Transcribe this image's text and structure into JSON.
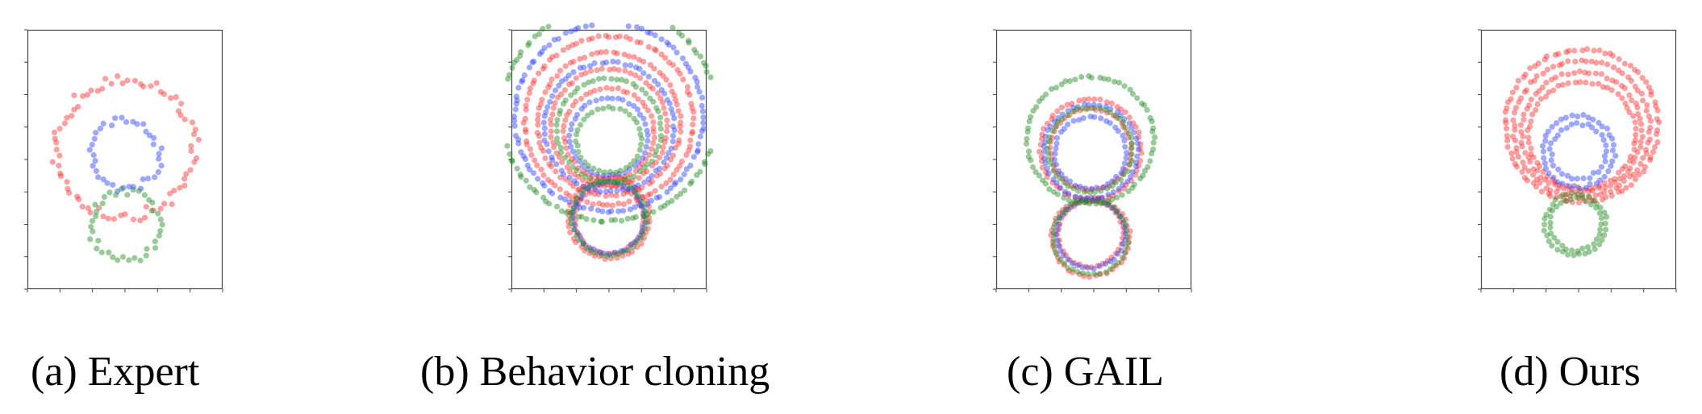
{
  "captions": {
    "a": "(a) Expert",
    "b": "(b) Behavior cloning",
    "c": "(c) GAIL",
    "d": "(d) Ours"
  },
  "colors": {
    "red": "#ff2a2a",
    "blue": "#2a3dff",
    "green": "#1f8a1f",
    "axis": "#444444"
  },
  "chart_data": [
    {
      "type": "scatter",
      "title": "(a) Expert",
      "xlim": [
        0,
        6
      ],
      "ylim": [
        0,
        8
      ],
      "grid": false,
      "series": [
        {
          "color": "red",
          "circles": [
            {
              "cx": 3.0,
              "cy": 4.35,
              "r": 2.1
            }
          ],
          "jitter": 0.18
        },
        {
          "color": "blue",
          "circles": [
            {
              "cx": 3.0,
              "cy": 4.15,
              "r": 1.05
            }
          ],
          "jitter": 0.12
        },
        {
          "color": "green",
          "circles": [
            {
              "cx": 3.0,
              "cy": 1.95,
              "r": 1.05
            }
          ],
          "jitter": 0.12
        }
      ]
    },
    {
      "type": "scatter",
      "title": "(b) Behavior cloning",
      "xlim": [
        0,
        6
      ],
      "ylim": [
        0,
        8
      ],
      "grid": false,
      "series": [
        {
          "color": "red",
          "circles": [
            {
              "cx": 3.0,
              "cy": 5.2,
              "r": 2.6
            },
            {
              "cx": 3.0,
              "cy": 5.1,
              "r": 2.2
            },
            {
              "cx": 3.0,
              "cy": 5.0,
              "r": 1.8
            },
            {
              "cx": 3.0,
              "cy": 4.8,
              "r": 1.4
            },
            {
              "cx": 3.0,
              "cy": 2.2,
              "r": 1.25
            },
            {
              "cx": 3.0,
              "cy": 2.15,
              "r": 1.05
            }
          ],
          "jitter": 0.03
        },
        {
          "color": "blue",
          "circles": [
            {
              "cx": 3.0,
              "cy": 5.3,
              "r": 2.9
            },
            {
              "cx": 3.0,
              "cy": 5.0,
              "r": 2.0
            },
            {
              "cx": 3.0,
              "cy": 4.7,
              "r": 1.2
            },
            {
              "cx": 3.0,
              "cy": 2.2,
              "r": 1.1
            }
          ],
          "jitter": 0.03
        },
        {
          "color": "green",
          "circles": [
            {
              "cx": 3.0,
              "cy": 5.4,
              "r": 3.3
            },
            {
              "cx": 3.0,
              "cy": 4.9,
              "r": 1.6
            },
            {
              "cx": 3.0,
              "cy": 4.6,
              "r": 1.0
            },
            {
              "cx": 3.0,
              "cy": 2.2,
              "r": 1.15
            }
          ],
          "jitter": 0.03
        }
      ]
    },
    {
      "type": "scatter",
      "title": "(c) GAIL",
      "xlim": [
        0,
        6
      ],
      "ylim": [
        0,
        8
      ],
      "grid": false,
      "series": [
        {
          "color": "red",
          "circles": [
            {
              "cx": 2.9,
              "cy": 4.3,
              "r": 1.55
            },
            {
              "cx": 2.9,
              "cy": 4.3,
              "r": 1.25
            },
            {
              "cx": 2.9,
              "cy": 1.6,
              "r": 1.2
            },
            {
              "cx": 2.9,
              "cy": 1.7,
              "r": 1.0
            }
          ],
          "jitter": 0.03
        },
        {
          "color": "blue",
          "circles": [
            {
              "cx": 2.9,
              "cy": 4.25,
              "r": 1.45
            },
            {
              "cx": 2.9,
              "cy": 4.2,
              "r": 1.1
            },
            {
              "cx": 2.9,
              "cy": 1.7,
              "r": 1.05
            }
          ],
          "jitter": 0.03
        },
        {
          "color": "green",
          "circles": [
            {
              "cx": 2.9,
              "cy": 4.6,
              "r": 1.95
            },
            {
              "cx": 2.9,
              "cy": 4.3,
              "r": 1.3
            },
            {
              "cx": 2.9,
              "cy": 1.6,
              "r": 1.15
            }
          ],
          "jitter": 0.03
        }
      ]
    },
    {
      "type": "scatter",
      "title": "(d) Ours",
      "xlim": [
        0,
        6
      ],
      "ylim": [
        0,
        8
      ],
      "grid": false,
      "series": [
        {
          "color": "red",
          "circles": [
            {
              "cx": 3.1,
              "cy": 5.05,
              "r": 2.35
            },
            {
              "cx": 3.1,
              "cy": 4.95,
              "r": 2.1
            },
            {
              "cx": 3.1,
              "cy": 4.85,
              "r": 1.85
            },
            {
              "cx": 3.1,
              "cy": 4.75,
              "r": 1.65
            }
          ],
          "jitter": 0.04
        },
        {
          "color": "blue",
          "circles": [
            {
              "cx": 3.0,
              "cy": 4.25,
              "r": 1.1
            },
            {
              "cx": 3.0,
              "cy": 4.25,
              "r": 0.85
            }
          ],
          "jitter": 0.05
        },
        {
          "color": "green",
          "circles": [
            {
              "cx": 2.9,
              "cy": 2.0,
              "r": 0.95
            },
            {
              "cx": 2.9,
              "cy": 2.0,
              "r": 0.8
            }
          ],
          "jitter": 0.04
        }
      ]
    }
  ]
}
